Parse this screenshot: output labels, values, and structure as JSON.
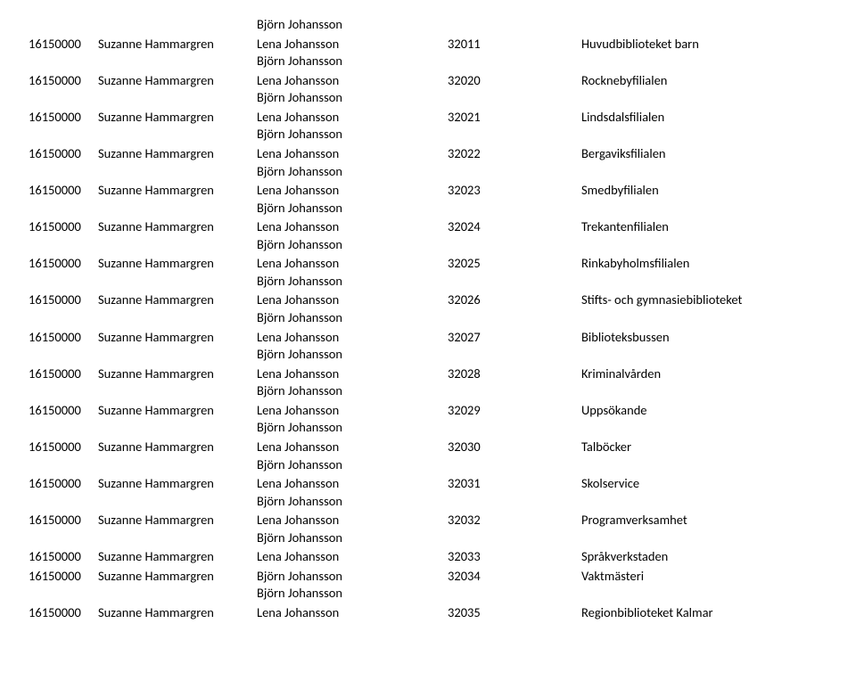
{
  "topOrphan": "Björn Johansson",
  "rows": [
    {
      "id": "16150000",
      "name": "Suzanne Hammargren",
      "sub": "Lena Johansson",
      "code": "32011",
      "desc": "Huvudbiblioteket barn",
      "secondSub": "Björn Johansson"
    },
    {
      "id": "16150000",
      "name": "Suzanne Hammargren",
      "sub": "Lena Johansson",
      "code": "32020",
      "desc": "Rocknebyfilialen",
      "secondSub": "Björn Johansson"
    },
    {
      "id": "16150000",
      "name": "Suzanne Hammargren",
      "sub": "Lena Johansson",
      "code": "32021",
      "desc": "Lindsdalsfilialen",
      "secondSub": "Björn Johansson"
    },
    {
      "id": "16150000",
      "name": "Suzanne Hammargren",
      "sub": "Lena Johansson",
      "code": "32022",
      "desc": "Bergaviksfilialen",
      "secondSub": "Björn Johansson"
    },
    {
      "id": "16150000",
      "name": "Suzanne Hammargren",
      "sub": "Lena Johansson",
      "code": "32023",
      "desc": "Smedbyfilialen",
      "secondSub": "Björn Johansson"
    },
    {
      "id": "16150000",
      "name": "Suzanne Hammargren",
      "sub": "Lena Johansson",
      "code": "32024",
      "desc": "Trekantenfilialen",
      "secondSub": "Björn Johansson"
    },
    {
      "id": "16150000",
      "name": "Suzanne Hammargren",
      "sub": "Lena Johansson",
      "code": "32025",
      "desc": "Rinkabyholmsfilialen",
      "secondSub": "Björn Johansson"
    },
    {
      "id": "16150000",
      "name": "Suzanne Hammargren",
      "sub": "Lena Johansson",
      "code": "32026",
      "desc": "Stifts- och gymnasiebiblioteket",
      "secondSub": "Björn Johansson"
    },
    {
      "id": "16150000",
      "name": "Suzanne Hammargren",
      "sub": "Lena Johansson",
      "code": "32027",
      "desc": "Biblioteksbussen",
      "secondSub": "Björn Johansson"
    },
    {
      "id": "16150000",
      "name": "Suzanne Hammargren",
      "sub": "Lena Johansson",
      "code": "32028",
      "desc": "Kriminalvården",
      "secondSub": "Björn Johansson"
    },
    {
      "id": "16150000",
      "name": "Suzanne Hammargren",
      "sub": "Lena Johansson",
      "code": "32029",
      "desc": "Uppsökande",
      "secondSub": "Björn Johansson"
    },
    {
      "id": "16150000",
      "name": "Suzanne Hammargren",
      "sub": "Lena Johansson",
      "code": "32030",
      "desc": "Talböcker",
      "secondSub": "Björn Johansson"
    },
    {
      "id": "16150000",
      "name": "Suzanne Hammargren",
      "sub": "Lena Johansson",
      "code": "32031",
      "desc": "Skolservice",
      "secondSub": "Björn Johansson"
    },
    {
      "id": "16150000",
      "name": "Suzanne Hammargren",
      "sub": "Lena Johansson",
      "code": "32032",
      "desc": "Programverksamhet",
      "secondSub": "Björn Johansson"
    },
    {
      "id": "16150000",
      "name": "Suzanne Hammargren",
      "sub": "Lena Johansson",
      "code": "32033",
      "desc": "Språkverkstaden",
      "secondSub": null
    },
    {
      "id": "16150000",
      "name": "Suzanne Hammargren",
      "sub": "Björn Johansson",
      "code": "32034",
      "desc": "Vaktmästeri",
      "secondSub": "Björn Johansson"
    },
    {
      "id": "16150000",
      "name": "Suzanne Hammargren",
      "sub": "Lena Johansson",
      "code": "32035",
      "desc": "Regionbiblioteket Kalmar",
      "secondSub": null
    }
  ]
}
